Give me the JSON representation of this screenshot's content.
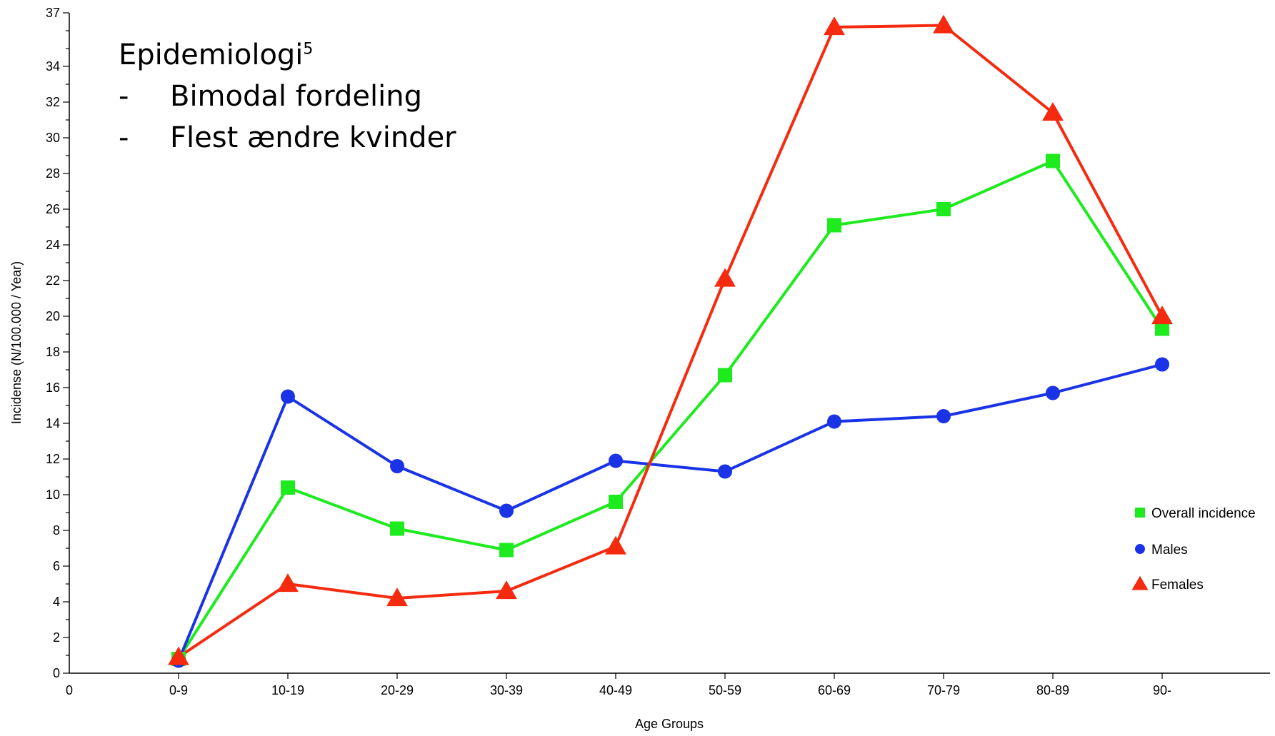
{
  "chart_data": {
    "type": "line",
    "annotation": {
      "title": "Epidemiologi",
      "superscript": "5",
      "bullets": [
        "Bimodal fordeling",
        "Flest ændre kvinder"
      ],
      "bullet_marker": "-"
    },
    "xlabel": "Age Groups",
    "ylabel": "Incidense (N/100.000 / Year)",
    "x_origin_label": "0",
    "categories": [
      "0-9",
      "10-19",
      "20-29",
      "30-39",
      "40-49",
      "50-59",
      "60-69",
      "70-79",
      "80-89",
      "90-"
    ],
    "ylim": [
      0,
      37
    ],
    "y_ticks": [
      0,
      2,
      4,
      6,
      8,
      10,
      12,
      14,
      16,
      18,
      20,
      22,
      24,
      26,
      28,
      30,
      32,
      34,
      37
    ],
    "grid": false,
    "legend_position": "right",
    "series": [
      {
        "name": "Overall incidence",
        "color": "#1eeb1e",
        "marker": "square",
        "values": [
          0.8,
          10.4,
          8.1,
          6.9,
          9.6,
          16.7,
          25.1,
          26.0,
          28.7,
          19.3
        ]
      },
      {
        "name": "Males",
        "color": "#1a33e6",
        "marker": "circle",
        "values": [
          0.7,
          15.5,
          11.6,
          9.1,
          11.9,
          11.3,
          14.1,
          14.4,
          15.7,
          17.3
        ]
      },
      {
        "name": "Females",
        "color": "#f52a0e",
        "marker": "triangle",
        "values": [
          0.9,
          5.0,
          4.2,
          4.6,
          7.1,
          22.1,
          36.2,
          36.3,
          31.4,
          20.0
        ]
      }
    ]
  }
}
